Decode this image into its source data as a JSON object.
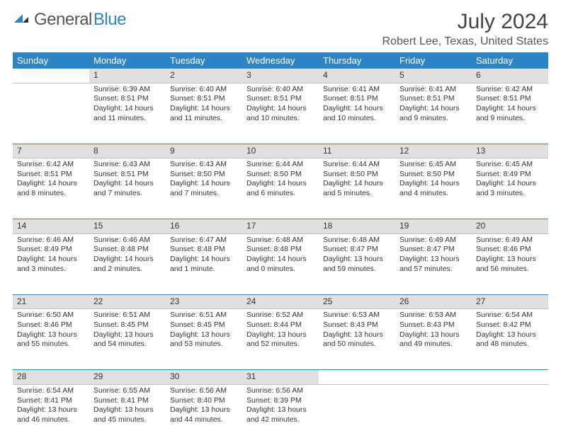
{
  "logo": {
    "part1": "General",
    "part2": "Blue"
  },
  "title": "July 2024",
  "location": "Robert Lee, Texas, United States",
  "colors": {
    "brand": "#2d84c5",
    "header_bg": "#2d84c5",
    "header_text": "#ffffff",
    "daynum_bg": "#e0e0e0",
    "text": "#333333"
  },
  "weekdays": [
    "Sunday",
    "Monday",
    "Tuesday",
    "Wednesday",
    "Thursday",
    "Friday",
    "Saturday"
  ],
  "weeks": [
    [
      null,
      {
        "n": "1",
        "sr": "Sunrise: 6:39 AM",
        "ss": "Sunset: 8:51 PM",
        "d1": "Daylight: 14 hours",
        "d2": "and 11 minutes."
      },
      {
        "n": "2",
        "sr": "Sunrise: 6:40 AM",
        "ss": "Sunset: 8:51 PM",
        "d1": "Daylight: 14 hours",
        "d2": "and 11 minutes."
      },
      {
        "n": "3",
        "sr": "Sunrise: 6:40 AM",
        "ss": "Sunset: 8:51 PM",
        "d1": "Daylight: 14 hours",
        "d2": "and 10 minutes."
      },
      {
        "n": "4",
        "sr": "Sunrise: 6:41 AM",
        "ss": "Sunset: 8:51 PM",
        "d1": "Daylight: 14 hours",
        "d2": "and 10 minutes."
      },
      {
        "n": "5",
        "sr": "Sunrise: 6:41 AM",
        "ss": "Sunset: 8:51 PM",
        "d1": "Daylight: 14 hours",
        "d2": "and 9 minutes."
      },
      {
        "n": "6",
        "sr": "Sunrise: 6:42 AM",
        "ss": "Sunset: 8:51 PM",
        "d1": "Daylight: 14 hours",
        "d2": "and 9 minutes."
      }
    ],
    [
      {
        "n": "7",
        "sr": "Sunrise: 6:42 AM",
        "ss": "Sunset: 8:51 PM",
        "d1": "Daylight: 14 hours",
        "d2": "and 8 minutes."
      },
      {
        "n": "8",
        "sr": "Sunrise: 6:43 AM",
        "ss": "Sunset: 8:51 PM",
        "d1": "Daylight: 14 hours",
        "d2": "and 7 minutes."
      },
      {
        "n": "9",
        "sr": "Sunrise: 6:43 AM",
        "ss": "Sunset: 8:50 PM",
        "d1": "Daylight: 14 hours",
        "d2": "and 7 minutes."
      },
      {
        "n": "10",
        "sr": "Sunrise: 6:44 AM",
        "ss": "Sunset: 8:50 PM",
        "d1": "Daylight: 14 hours",
        "d2": "and 6 minutes."
      },
      {
        "n": "11",
        "sr": "Sunrise: 6:44 AM",
        "ss": "Sunset: 8:50 PM",
        "d1": "Daylight: 14 hours",
        "d2": "and 5 minutes."
      },
      {
        "n": "12",
        "sr": "Sunrise: 6:45 AM",
        "ss": "Sunset: 8:50 PM",
        "d1": "Daylight: 14 hours",
        "d2": "and 4 minutes."
      },
      {
        "n": "13",
        "sr": "Sunrise: 6:45 AM",
        "ss": "Sunset: 8:49 PM",
        "d1": "Daylight: 14 hours",
        "d2": "and 3 minutes."
      }
    ],
    [
      {
        "n": "14",
        "sr": "Sunrise: 6:46 AM",
        "ss": "Sunset: 8:49 PM",
        "d1": "Daylight: 14 hours",
        "d2": "and 3 minutes."
      },
      {
        "n": "15",
        "sr": "Sunrise: 6:46 AM",
        "ss": "Sunset: 8:48 PM",
        "d1": "Daylight: 14 hours",
        "d2": "and 2 minutes."
      },
      {
        "n": "16",
        "sr": "Sunrise: 6:47 AM",
        "ss": "Sunset: 8:48 PM",
        "d1": "Daylight: 14 hours",
        "d2": "and 1 minute."
      },
      {
        "n": "17",
        "sr": "Sunrise: 6:48 AM",
        "ss": "Sunset: 8:48 PM",
        "d1": "Daylight: 14 hours",
        "d2": "and 0 minutes."
      },
      {
        "n": "18",
        "sr": "Sunrise: 6:48 AM",
        "ss": "Sunset: 8:47 PM",
        "d1": "Daylight: 13 hours",
        "d2": "and 59 minutes."
      },
      {
        "n": "19",
        "sr": "Sunrise: 6:49 AM",
        "ss": "Sunset: 8:47 PM",
        "d1": "Daylight: 13 hours",
        "d2": "and 57 minutes."
      },
      {
        "n": "20",
        "sr": "Sunrise: 6:49 AM",
        "ss": "Sunset: 8:46 PM",
        "d1": "Daylight: 13 hours",
        "d2": "and 56 minutes."
      }
    ],
    [
      {
        "n": "21",
        "sr": "Sunrise: 6:50 AM",
        "ss": "Sunset: 8:46 PM",
        "d1": "Daylight: 13 hours",
        "d2": "and 55 minutes."
      },
      {
        "n": "22",
        "sr": "Sunrise: 6:51 AM",
        "ss": "Sunset: 8:45 PM",
        "d1": "Daylight: 13 hours",
        "d2": "and 54 minutes."
      },
      {
        "n": "23",
        "sr": "Sunrise: 6:51 AM",
        "ss": "Sunset: 8:45 PM",
        "d1": "Daylight: 13 hours",
        "d2": "and 53 minutes."
      },
      {
        "n": "24",
        "sr": "Sunrise: 6:52 AM",
        "ss": "Sunset: 8:44 PM",
        "d1": "Daylight: 13 hours",
        "d2": "and 52 minutes."
      },
      {
        "n": "25",
        "sr": "Sunrise: 6:53 AM",
        "ss": "Sunset: 8:43 PM",
        "d1": "Daylight: 13 hours",
        "d2": "and 50 minutes."
      },
      {
        "n": "26",
        "sr": "Sunrise: 6:53 AM",
        "ss": "Sunset: 8:43 PM",
        "d1": "Daylight: 13 hours",
        "d2": "and 49 minutes."
      },
      {
        "n": "27",
        "sr": "Sunrise: 6:54 AM",
        "ss": "Sunset: 8:42 PM",
        "d1": "Daylight: 13 hours",
        "d2": "and 48 minutes."
      }
    ],
    [
      {
        "n": "28",
        "sr": "Sunrise: 6:54 AM",
        "ss": "Sunset: 8:41 PM",
        "d1": "Daylight: 13 hours",
        "d2": "and 46 minutes."
      },
      {
        "n": "29",
        "sr": "Sunrise: 6:55 AM",
        "ss": "Sunset: 8:41 PM",
        "d1": "Daylight: 13 hours",
        "d2": "and 45 minutes."
      },
      {
        "n": "30",
        "sr": "Sunrise: 6:56 AM",
        "ss": "Sunset: 8:40 PM",
        "d1": "Daylight: 13 hours",
        "d2": "and 44 minutes."
      },
      {
        "n": "31",
        "sr": "Sunrise: 6:56 AM",
        "ss": "Sunset: 8:39 PM",
        "d1": "Daylight: 13 hours",
        "d2": "and 42 minutes."
      },
      null,
      null,
      null
    ]
  ]
}
